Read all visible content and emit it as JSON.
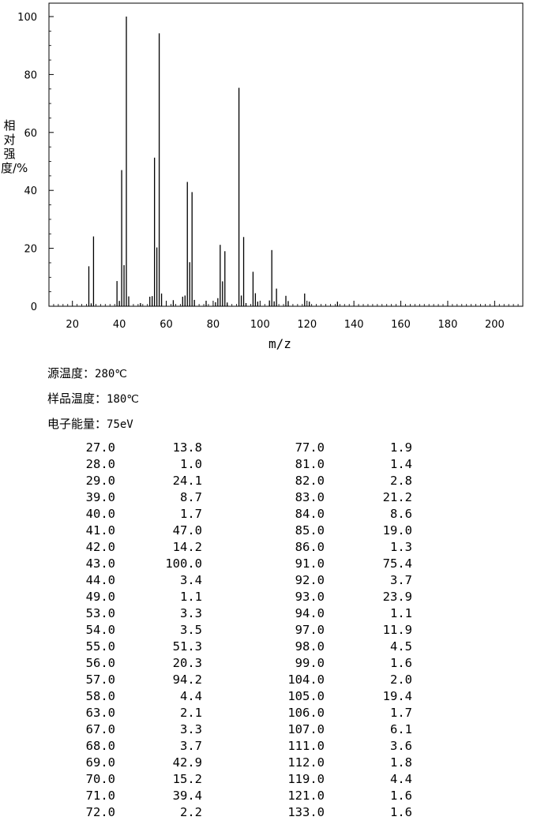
{
  "conditions": {
    "source_temp_label": "源温度：",
    "source_temp_value": "280℃",
    "sample_temp_label": "样品温度：",
    "sample_temp_value": "180℃",
    "electron_energy_label": "电子能量：",
    "electron_energy_value": "75eV"
  },
  "chart_data": {
    "type": "bar",
    "xlabel": "m/z",
    "ylabel": "相对强度/%",
    "xlim": [
      10,
      212
    ],
    "ylim": [
      0,
      100
    ],
    "x_ticks": [
      20,
      40,
      60,
      80,
      100,
      120,
      140,
      160,
      180,
      200
    ],
    "y_ticks": [
      0,
      20,
      40,
      60,
      80,
      100
    ],
    "grid": false,
    "peaks": [
      [
        27,
        13.8
      ],
      [
        28,
        1.0
      ],
      [
        29,
        24.1
      ],
      [
        39,
        8.7
      ],
      [
        40,
        1.7
      ],
      [
        41,
        47.0
      ],
      [
        42,
        14.2
      ],
      [
        43,
        100.0
      ],
      [
        44,
        3.4
      ],
      [
        49,
        1.1
      ],
      [
        53,
        3.3
      ],
      [
        54,
        3.5
      ],
      [
        55,
        51.3
      ],
      [
        56,
        20.3
      ],
      [
        57,
        94.2
      ],
      [
        58,
        4.4
      ],
      [
        63,
        2.1
      ],
      [
        67,
        3.3
      ],
      [
        68,
        3.7
      ],
      [
        69,
        42.9
      ],
      [
        70,
        15.2
      ],
      [
        71,
        39.4
      ],
      [
        72,
        2.2
      ],
      [
        77,
        1.9
      ],
      [
        81,
        1.4
      ],
      [
        82,
        2.8
      ],
      [
        83,
        21.2
      ],
      [
        84,
        8.6
      ],
      [
        85,
        19.0
      ],
      [
        86,
        1.3
      ],
      [
        91,
        75.4
      ],
      [
        92,
        3.7
      ],
      [
        93,
        23.9
      ],
      [
        94,
        1.1
      ],
      [
        97,
        11.9
      ],
      [
        98,
        4.5
      ],
      [
        99,
        1.6
      ],
      [
        104,
        2.0
      ],
      [
        105,
        19.4
      ],
      [
        106,
        1.7
      ],
      [
        107,
        6.1
      ],
      [
        111,
        3.6
      ],
      [
        112,
        1.8
      ],
      [
        119,
        4.4
      ],
      [
        121,
        1.6
      ],
      [
        133,
        1.6
      ]
    ]
  },
  "peak_table": [
    [
      "27.0",
      "13.8",
      "77.0",
      "1.9"
    ],
    [
      "28.0",
      "1.0",
      "81.0",
      "1.4"
    ],
    [
      "29.0",
      "24.1",
      "82.0",
      "2.8"
    ],
    [
      "39.0",
      "8.7",
      "83.0",
      "21.2"
    ],
    [
      "40.0",
      "1.7",
      "84.0",
      "8.6"
    ],
    [
      "41.0",
      "47.0",
      "85.0",
      "19.0"
    ],
    [
      "42.0",
      "14.2",
      "86.0",
      "1.3"
    ],
    [
      "43.0",
      "100.0",
      "91.0",
      "75.4"
    ],
    [
      "44.0",
      "3.4",
      "92.0",
      "3.7"
    ],
    [
      "49.0",
      "1.1",
      "93.0",
      "23.9"
    ],
    [
      "53.0",
      "3.3",
      "94.0",
      "1.1"
    ],
    [
      "54.0",
      "3.5",
      "97.0",
      "11.9"
    ],
    [
      "55.0",
      "51.3",
      "98.0",
      "4.5"
    ],
    [
      "56.0",
      "20.3",
      "99.0",
      "1.6"
    ],
    [
      "57.0",
      "94.2",
      "104.0",
      "2.0"
    ],
    [
      "58.0",
      "4.4",
      "105.0",
      "19.4"
    ],
    [
      "63.0",
      "2.1",
      "106.0",
      "1.7"
    ],
    [
      "67.0",
      "3.3",
      "107.0",
      "6.1"
    ],
    [
      "68.0",
      "3.7",
      "111.0",
      "3.6"
    ],
    [
      "69.0",
      "42.9",
      "112.0",
      "1.8"
    ],
    [
      "70.0",
      "15.2",
      "119.0",
      "4.4"
    ],
    [
      "71.0",
      "39.4",
      "121.0",
      "1.6"
    ],
    [
      "72.0",
      "2.2",
      "133.0",
      "1.6"
    ]
  ]
}
